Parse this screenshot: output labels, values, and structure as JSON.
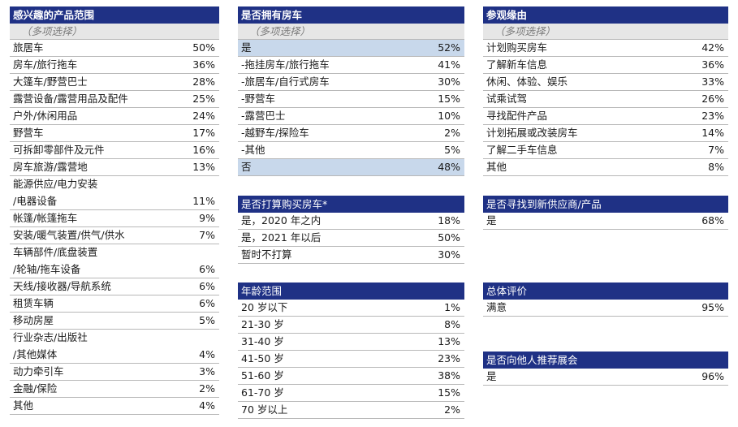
{
  "interest": {
    "title": "感兴趣的产品范围",
    "subtitle": "（多项选择）",
    "rows": [
      {
        "label": "旅居车",
        "value": "50%"
      },
      {
        "label": "房车/旅行拖车",
        "value": "36%"
      },
      {
        "label": "大篷车/野营巴士",
        "value": "28%"
      },
      {
        "label": "露营设备/露营用品及配件",
        "value": "25%"
      },
      {
        "label": "户外/休闲用品",
        "value": "24%"
      },
      {
        "label": "野营车",
        "value": "17%"
      },
      {
        "label": "可拆卸零部件及元件",
        "value": "16%"
      },
      {
        "label": "房车旅游/露营地",
        "value": "13%"
      },
      {
        "label": "能源供应/电力安装\n/电器设备",
        "value": "11%",
        "tall": true
      },
      {
        "label": "帐篷/帐篷拖车",
        "value": "9%"
      },
      {
        "label": "安装/暖气装置/供气/供水",
        "value": "7%"
      },
      {
        "label": "车辆部件/底盘装置\n/轮轴/拖车设备",
        "value": "6%",
        "tall": true
      },
      {
        "label": "天线/接收器/导航系统",
        "value": "6%"
      },
      {
        "label": "租赁车辆",
        "value": "6%"
      },
      {
        "label": "移动房屋",
        "value": "5%"
      },
      {
        "label": "行业杂志/出版社\n/其他媒体",
        "value": "4%",
        "tall": true
      },
      {
        "label": "动力牵引车",
        "value": "3%"
      },
      {
        "label": "金融/保险",
        "value": "2%"
      },
      {
        "label": "其他",
        "value": "4%"
      }
    ]
  },
  "own_rv": {
    "title": "是否拥有房车",
    "subtitle": "（多项选择）",
    "rows": [
      {
        "label": "是",
        "value": "52%",
        "highlight": true
      },
      {
        "label": "-拖挂房车/旅行拖车",
        "value": "41%"
      },
      {
        "label": "-旅居车/自行式房车",
        "value": "30%"
      },
      {
        "label": "-野营车",
        "value": "15%"
      },
      {
        "label": "-露营巴士",
        "value": "10%"
      },
      {
        "label": "-越野车/探险车",
        "value": "2%"
      },
      {
        "label": "-其他",
        "value": "5%"
      },
      {
        "label": "否",
        "value": "48%",
        "highlight": true
      }
    ]
  },
  "purchase_plan": {
    "title": "是否打算购买房车*",
    "rows": [
      {
        "label": "是，2020 年之内",
        "value": "18%"
      },
      {
        "label": "是，2021 年以后",
        "value": "50%"
      },
      {
        "label": "暂时不打算",
        "value": "30%"
      }
    ]
  },
  "age": {
    "title": "年龄范围",
    "rows": [
      {
        "label": "20 岁以下",
        "value": "1%"
      },
      {
        "label": "21-30 岁",
        "value": "8%"
      },
      {
        "label": "31-40 岁",
        "value": "13%"
      },
      {
        "label": "41-50 岁",
        "value": "23%"
      },
      {
        "label": "51-60 岁",
        "value": "38%"
      },
      {
        "label": "61-70 岁",
        "value": "15%"
      },
      {
        "label": "70 岁以上",
        "value": "2%"
      }
    ]
  },
  "reasons": {
    "title": "参观缘由",
    "subtitle": "（多项选择）",
    "rows": [
      {
        "label": "计划购买房车",
        "value": "42%"
      },
      {
        "label": "了解新车信息",
        "value": "36%"
      },
      {
        "label": "休闲、体验、娱乐",
        "value": "33%"
      },
      {
        "label": "试乘试驾",
        "value": "26%"
      },
      {
        "label": "寻找配件产品",
        "value": "23%"
      },
      {
        "label": "计划拓展或改装房车",
        "value": "14%"
      },
      {
        "label": "了解二手车信息",
        "value": "7%"
      },
      {
        "label": "其他",
        "value": "8%"
      }
    ]
  },
  "new_suppliers": {
    "title": "是否寻找到新供应商/产品",
    "rows": [
      {
        "label": "是",
        "value": "68%"
      }
    ]
  },
  "overall": {
    "title": "总体评价",
    "rows": [
      {
        "label": "满意",
        "value": "95%"
      }
    ]
  },
  "recommend": {
    "title": "是否向他人推荐展会",
    "rows": [
      {
        "label": "是",
        "value": "96%"
      }
    ]
  }
}
